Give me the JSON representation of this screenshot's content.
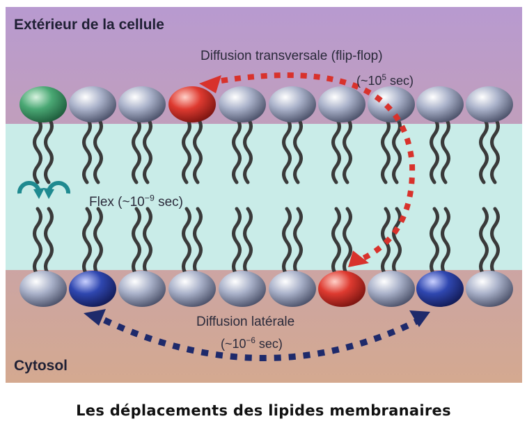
{
  "labels": {
    "outside": "Extérieur de la cellule",
    "cytosol": "Cytosol",
    "flipflop": "Diffusion transversale (flip-flop)",
    "flipflop_time_prefix": "(~10",
    "flipflop_time_exp": "5",
    "flipflop_time_suffix": " sec)",
    "flex_prefix": "Flex (~10",
    "flex_exp": "−9",
    "flex_suffix": " sec)",
    "lateral": "Diffusion latérale",
    "lateral_time_prefix": "(~10",
    "lateral_time_exp": "−6",
    "lateral_time_suffix": " sec)"
  },
  "caption": "Les déplacements des lipides membranaires",
  "colors": {
    "top_background": "#b89ad0",
    "bottom_background": "#d4a990",
    "membrane_core": "#c9ece8",
    "head_gray": "#9aa3bd",
    "head_green": "#3f9a6a",
    "head_red": "#d8322c",
    "head_blue": "#2a3f9e",
    "flipflop_arrow": "#d8322c",
    "lateral_arrow": "#1e2a6b",
    "flex_arrow": "#1f8a90"
  },
  "upper_leaflet_heads": [
    "green",
    "gray",
    "gray",
    "red",
    "gray",
    "gray",
    "gray",
    "gray",
    "gray",
    "gray"
  ],
  "lower_leaflet_heads": [
    "gray",
    "blue",
    "gray",
    "gray",
    "gray",
    "gray",
    "red",
    "gray",
    "blue",
    "gray"
  ]
}
